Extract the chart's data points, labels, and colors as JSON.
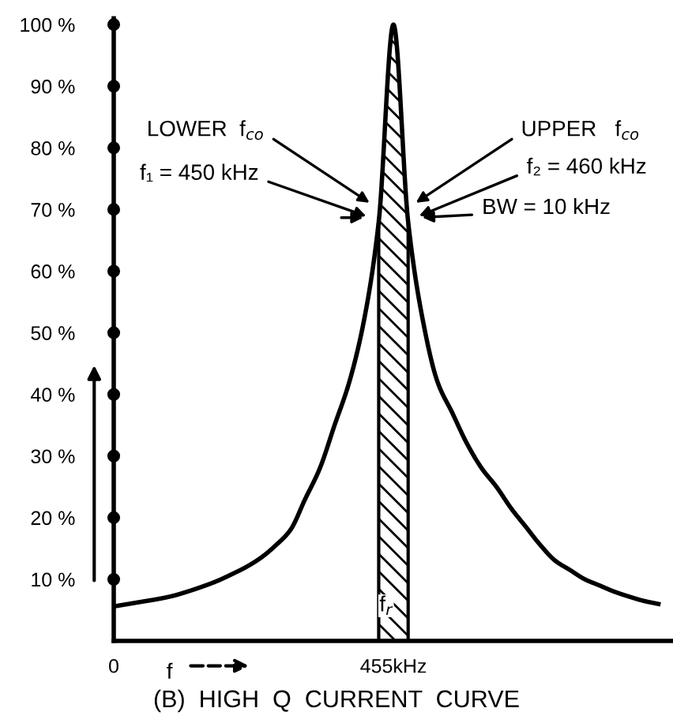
{
  "chart_data": {
    "type": "line",
    "title": "(B)  HIGH  Q  CURRENT  CURVE",
    "xlabel": "f",
    "categories": [
      "0",
      null,
      null,
      null,
      null,
      null,
      null,
      null,
      null,
      null,
      null,
      null,
      null,
      null,
      null,
      null,
      null,
      null,
      null,
      "455kHz",
      null,
      null,
      null,
      null,
      null,
      null,
      null,
      null,
      null,
      null,
      null,
      null,
      null,
      null,
      null,
      null,
      null,
      null
    ],
    "series": [
      {
        "color": "#000000",
        "values": [
          5.6,
          6.0,
          6.4,
          6.8,
          7.3,
          8.0,
          8.8,
          9.7,
          10.8,
          12,
          13.5,
          15.5,
          18,
          23,
          28,
          35,
          42,
          52,
          68,
          100,
          68,
          52,
          42,
          37,
          32,
          28,
          25,
          21.5,
          18.5,
          15.5,
          13,
          11.5,
          10,
          9,
          8,
          7.2,
          6.5,
          6.0
        ]
      },
      {
        "type": "area",
        "color": "#000000",
        "values": [
          null,
          null,
          null,
          null,
          null,
          null,
          null,
          null,
          null,
          null,
          null,
          null,
          null,
          null,
          null,
          null,
          null,
          null,
          68,
          100,
          68,
          null,
          null,
          null,
          null,
          null,
          null,
          null,
          null,
          null,
          null,
          null,
          null,
          null,
          null,
          null,
          null,
          null
        ]
      }
    ],
    "ylim": [
      0,
      101
    ],
    "yticks": [
      {
        "value": 10,
        "label": "10 %"
      },
      {
        "value": 20,
        "label": "20 %"
      },
      {
        "value": 30,
        "label": "30 %"
      },
      {
        "value": 40,
        "label": "40 %"
      },
      {
        "value": 50,
        "label": "50 %"
      },
      {
        "value": 60,
        "label": "60 %"
      },
      {
        "value": 70,
        "label": "70 %"
      },
      {
        "value": 80,
        "label": "80 %"
      },
      {
        "value": 90,
        "label": "90 %"
      },
      {
        "value": 100,
        "label": "100 %"
      }
    ],
    "annotations": [
      "f$_{r}$",
      "LOWER  f$_{co}$",
      "f₁ = 450 kHz",
      "UPPER   f$_{co}$",
      "f₂ = 460 kHz",
      "BW = 10 kHz"
    ],
    "grid": false,
    "legend": false,
    "marker": "none",
    "line_style": "solid"
  }
}
